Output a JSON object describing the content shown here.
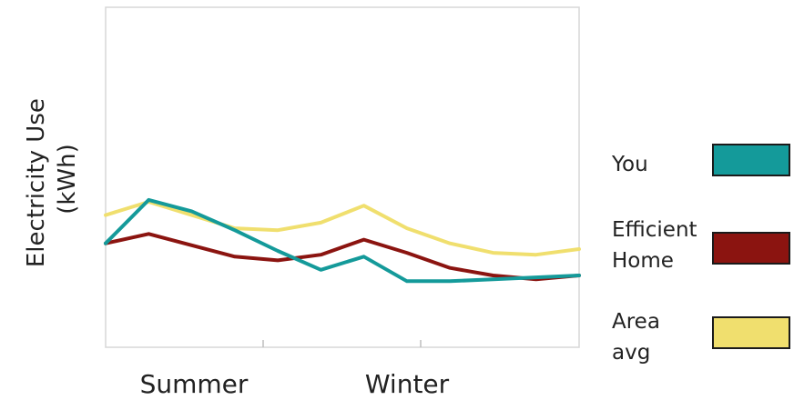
{
  "chart_data": {
    "type": "line",
    "ylabel": "Electricity Use\n(kWh)",
    "xlabel": "",
    "x_ticks": [
      "Summer",
      "Winter"
    ],
    "series": [
      {
        "name": "You",
        "color": "#149a9a",
        "values": [
          55,
          78,
          72,
          62,
          51,
          41,
          48,
          35,
          35,
          36,
          37,
          38
        ]
      },
      {
        "name": "Efficient Home",
        "color": "#8b1410",
        "values": [
          55,
          60,
          54,
          48,
          46,
          49,
          57,
          50,
          42,
          38,
          36,
          38
        ]
      },
      {
        "name": "Area avg",
        "color": "#f0df6e",
        "values": [
          70,
          77,
          70,
          63,
          62,
          66,
          75,
          63,
          55,
          50,
          49,
          52
        ]
      }
    ],
    "ylim": [
      0,
      180
    ],
    "grid": false,
    "legend": "right"
  },
  "legend": [
    {
      "label": "You",
      "color": "#149a9a"
    },
    {
      "label": "Efficient\nHome",
      "color": "#8b1410"
    },
    {
      "label": "Area\navg",
      "color": "#f0df6e"
    }
  ]
}
